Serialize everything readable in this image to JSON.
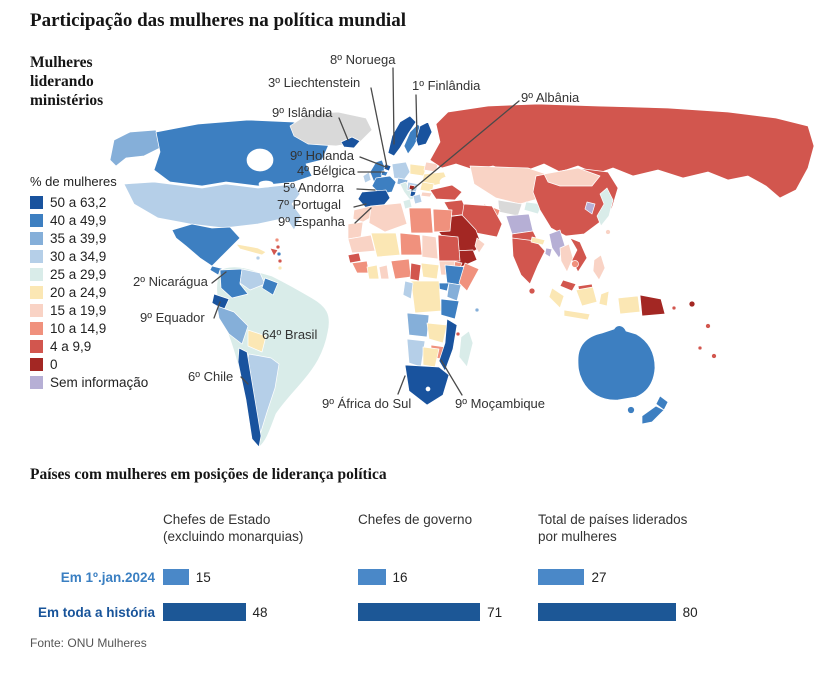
{
  "header": {
    "title": "Participação das mulheres na política mundial",
    "map_subtitle_lines": [
      "Mulheres",
      "liderando",
      "ministérios"
    ]
  },
  "chart_data": [
    {
      "type": "heatmap",
      "subtype": "choropleth_world_map",
      "title": "Mulheres liderando ministérios",
      "legend_title": "% de mulheres",
      "legend_position": "left",
      "classes": [
        {
          "label": "50 a 63,2",
          "color": "#19539e"
        },
        {
          "label": "40 a 49,9",
          "color": "#3d7fc1"
        },
        {
          "label": "35 a 39,9",
          "color": "#85afd9"
        },
        {
          "label": "30 a 34,9",
          "color": "#b5cfe8"
        },
        {
          "label": "25 a 29,9",
          "color": "#d9ece9"
        },
        {
          "label": "20 a 24,9",
          "color": "#fbe7b4"
        },
        {
          "label": "15 a 19,9",
          "color": "#f9d3c5"
        },
        {
          "label": "10 a 14,9",
          "color": "#f0917d"
        },
        {
          "label": "4 a 9,9",
          "color": "#d2564e"
        },
        {
          "label": "0",
          "color": "#a32723"
        },
        {
          "label": "Sem informação",
          "color": "#b6afd5"
        }
      ],
      "neutral_territory_color": "#d9d9d9",
      "annotations": [
        "8º Noruega",
        "3º Liechtenstein",
        "1º Finlândia",
        "9º Albânia",
        "9º Islândia",
        "9º Holanda",
        "4º Bélgica",
        "5º Andorra",
        "7º Portugal",
        "9º Espanha",
        "2º Nicarágua",
        "9º Equador",
        "64º Brasil",
        "6º Chile",
        "9º África do Sul",
        "9º Moçambique"
      ]
    },
    {
      "type": "bar",
      "orientation": "horizontal",
      "title": "Países com mulheres em posições de liderança política",
      "categories": [
        "Chefes de Estado (excluindo monarquias)",
        "Chefes de governo",
        "Total de países liderados por mulheres"
      ],
      "category_lines": [
        [
          "Chefes de Estado",
          "(excluindo monarquias)"
        ],
        [
          "Chefes de governo",
          ""
        ],
        [
          "Total de países liderados",
          "por mulheres"
        ]
      ],
      "series": [
        {
          "name": "Em 1º.jan.2024",
          "values": [
            15,
            16,
            27
          ],
          "color": "#4a88c8",
          "label_color": "#3a7fc2"
        },
        {
          "name": "Em toda a história",
          "values": [
            48,
            71,
            80
          ],
          "color": "#1c5796",
          "label_color": "#18549a"
        }
      ],
      "source": "Fonte: ONU Mulheres"
    }
  ]
}
